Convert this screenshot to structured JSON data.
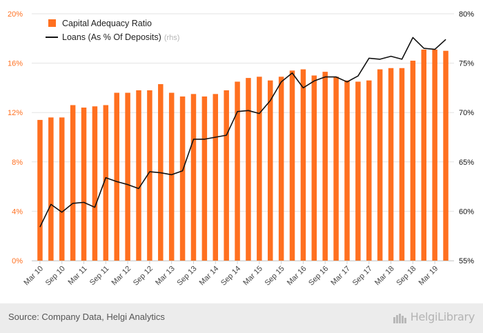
{
  "chart_data": {
    "type": "bar",
    "title": "",
    "left_axis": {
      "min": 0,
      "max": 20,
      "ticks": [
        "0%",
        "4%",
        "8%",
        "12%",
        "16%",
        "20%"
      ],
      "tick_values": [
        0,
        4,
        8,
        12,
        16,
        20
      ]
    },
    "right_axis": {
      "min": 55,
      "max": 80,
      "ticks": [
        "55%",
        "60%",
        "65%",
        "70%",
        "75%",
        "80%"
      ],
      "tick_values": [
        55,
        60,
        65,
        70,
        75,
        80
      ]
    },
    "x_tick_labels": [
      "Mar 10",
      "Sep 10",
      "Mar 11",
      "Sep 11",
      "Mar 12",
      "Sep 12",
      "Mar 13",
      "Sep 13",
      "Mar 14",
      "Sep 14",
      "Mar 15",
      "Sep 15",
      "Mar 16",
      "Sep 16",
      "Mar 17",
      "Sep 17",
      "Mar 18",
      "Sep 18",
      "Mar 19"
    ],
    "categories": [
      "Mar 10",
      "Jun 10",
      "Sep 10",
      "Dec 10",
      "Mar 11",
      "Jun 11",
      "Sep 11",
      "Dec 11",
      "Mar 12",
      "Jun 12",
      "Sep 12",
      "Dec 12",
      "Mar 13",
      "Jun 13",
      "Sep 13",
      "Dec 13",
      "Mar 14",
      "Jun 14",
      "Sep 14",
      "Dec 14",
      "Mar 15",
      "Jun 15",
      "Sep 15",
      "Dec 15",
      "Mar 16",
      "Jun 16",
      "Sep 16",
      "Dec 16",
      "Mar 17",
      "Jun 17",
      "Sep 17",
      "Dec 17",
      "Mar 18",
      "Jun 18",
      "Sep 18",
      "Dec 18",
      "Mar 19",
      "Jun 19"
    ],
    "series": [
      {
        "name": "Capital Adequacy Ratio",
        "type": "bar",
        "axis": "left",
        "color": "#ff7020",
        "values": [
          11.4,
          11.6,
          11.6,
          12.6,
          12.4,
          12.5,
          12.6,
          13.6,
          13.6,
          13.8,
          13.8,
          14.3,
          13.6,
          13.3,
          13.5,
          13.3,
          13.5,
          13.8,
          14.5,
          14.8,
          14.9,
          14.6,
          14.9,
          15.4,
          15.5,
          15.0,
          15.3,
          14.9,
          14.6,
          14.5,
          14.6,
          15.5,
          15.6,
          15.6,
          16.2,
          17.1,
          17.1,
          17.0
        ]
      },
      {
        "name": "Loans (As % Of Deposits)",
        "suffix": "(rhs)",
        "type": "line",
        "axis": "right",
        "color": "#111111",
        "values": [
          58.4,
          60.7,
          59.9,
          60.8,
          60.9,
          60.4,
          63.4,
          63.0,
          62.7,
          62.3,
          64.0,
          63.9,
          63.7,
          64.1,
          67.3,
          67.3,
          67.5,
          67.7,
          70.1,
          70.2,
          69.9,
          71.2,
          73.1,
          74.0,
          72.5,
          73.2,
          73.6,
          73.6,
          73.1,
          73.7,
          75.5,
          75.4,
          75.7,
          75.4,
          77.6,
          76.5,
          76.4,
          77.4
        ]
      }
    ]
  },
  "footer": {
    "source": "Source: Company Data, Helgi Analytics",
    "brand": "HelgiLibrary"
  }
}
